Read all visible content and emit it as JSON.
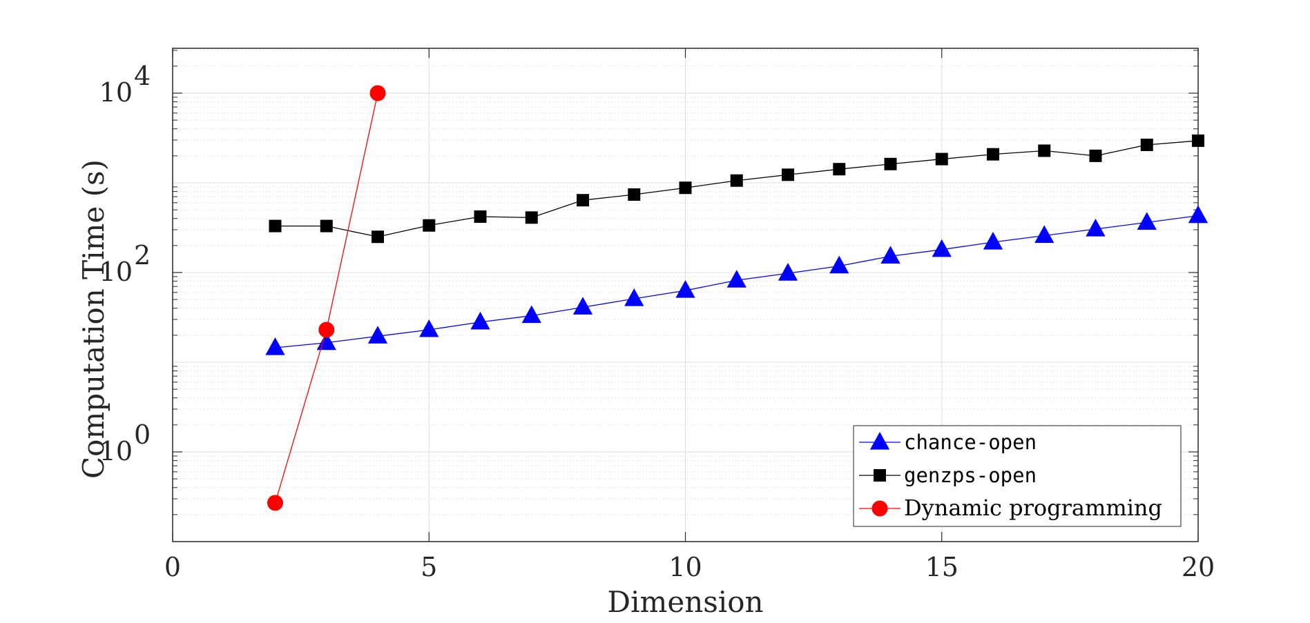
{
  "chart_data": {
    "type": "line",
    "xlabel": "Dimension",
    "ylabel": "Computation Time (s)",
    "xlim": [
      0,
      20
    ],
    "ylim_log10": [
      -1,
      4.5
    ],
    "y_scale": "log",
    "grid": true,
    "legend_position": "bottom-right",
    "xticks": [
      0,
      5,
      10,
      15,
      20
    ],
    "xtick_labels": [
      "0",
      "5",
      "10",
      "15",
      "20"
    ],
    "yticks_log10": [
      0,
      2,
      4
    ],
    "ytick_bases": [
      "10",
      "10",
      "10"
    ],
    "ytick_exponents": [
      "0",
      "2",
      "4"
    ],
    "series": [
      {
        "name": "chance-open",
        "color": "#0000ff",
        "marker": "triangle",
        "name_font": "mono",
        "x": [
          2,
          3,
          4,
          5,
          6,
          7,
          8,
          9,
          10,
          11,
          12,
          13,
          14,
          15,
          16,
          17,
          18,
          19,
          20
        ],
        "y": [
          14.5,
          16.5,
          19.5,
          23,
          28,
          33,
          41,
          51,
          63,
          82,
          98,
          118,
          152,
          180,
          218,
          258,
          305,
          362,
          430
        ]
      },
      {
        "name": "genzps-open",
        "color": "#000000",
        "marker": "square",
        "name_font": "mono",
        "x": [
          2,
          3,
          4,
          5,
          6,
          7,
          8,
          9,
          10,
          11,
          12,
          13,
          14,
          15,
          16,
          17,
          18,
          19,
          20
        ],
        "y": [
          330,
          330,
          250,
          335,
          420,
          410,
          640,
          740,
          880,
          1060,
          1230,
          1420,
          1620,
          1840,
          2080,
          2280,
          2000,
          2650,
          2950
        ]
      },
      {
        "name": "Dynamic programming",
        "color": "#ff0000",
        "marker": "circle",
        "name_font": "serif",
        "x": [
          2,
          3,
          4
        ],
        "y": [
          0.27,
          23,
          10000
        ]
      }
    ]
  }
}
